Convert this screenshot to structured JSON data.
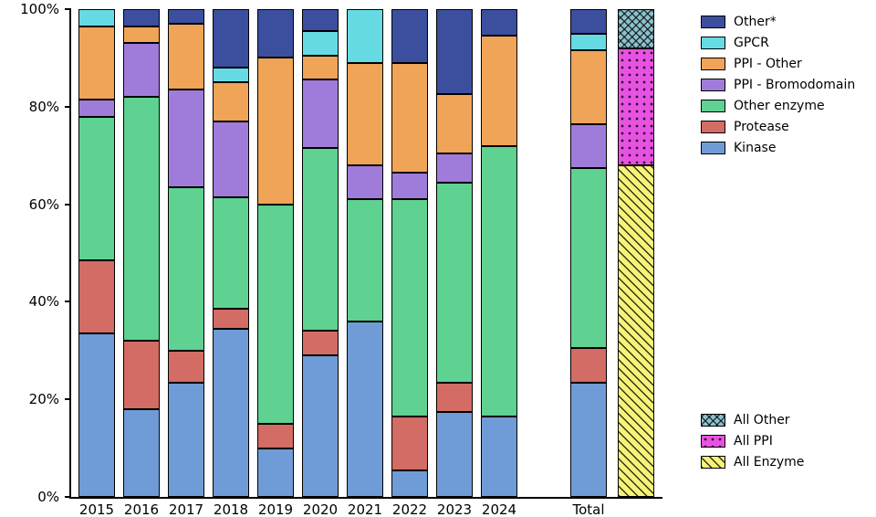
{
  "chart_data": {
    "type": "bar",
    "stacked": true,
    "unit": "%",
    "title": "",
    "xlabel": "",
    "ylabel": "",
    "ylim": [
      0,
      100
    ],
    "y_ticks": [
      "0%",
      "20%",
      "40%",
      "60%",
      "80%",
      "100%"
    ],
    "categories": [
      "2015",
      "2016",
      "2017",
      "2018",
      "2019",
      "2020",
      "2021",
      "2022",
      "2023",
      "2024",
      "Total"
    ],
    "series": [
      {
        "name": "Kinase",
        "color": "#6f9cd6",
        "values": [
          33.5,
          18,
          23.5,
          34.5,
          10,
          29,
          36,
          5.5,
          17.5,
          16.5,
          23.5
        ]
      },
      {
        "name": "Protease",
        "color": "#d26c64",
        "values": [
          15,
          14,
          6.5,
          4,
          5,
          5,
          0,
          11,
          6,
          0,
          7
        ]
      },
      {
        "name": "Other enzyme",
        "color": "#5fd191",
        "values": [
          29.5,
          50,
          33.5,
          23,
          45,
          37.5,
          25,
          44.5,
          41,
          55.5,
          37
        ]
      },
      {
        "name": "PPI - Bromodomain",
        "color": "#a07cda",
        "values": [
          3.5,
          11,
          20,
          15.5,
          0,
          14,
          7,
          5.5,
          6,
          0,
          9
        ]
      },
      {
        "name": "PPI - Other",
        "color": "#f0a458",
        "values": [
          15,
          3.5,
          13.5,
          8,
          30,
          5,
          21,
          22.5,
          12,
          22.5,
          15
        ]
      },
      {
        "name": "GPCR",
        "color": "#66dbe3",
        "values": [
          3.5,
          0,
          0,
          3,
          0,
          5,
          11,
          0,
          0,
          0,
          3.5
        ]
      },
      {
        "name": "Other*",
        "color": "#3c4e9e",
        "values": [
          0,
          3.5,
          3,
          12,
          10,
          4.5,
          0,
          11,
          17.5,
          5.5,
          5
        ]
      }
    ],
    "summary_bar": {
      "segments": [
        {
          "name": "All Enzyme",
          "value": 68,
          "color": "#f7f378",
          "pattern": "diagonal"
        },
        {
          "name": "All PPI",
          "value": 24,
          "color": "#e852e2",
          "pattern": "dots"
        },
        {
          "name": "All Other",
          "value": 8,
          "color": "#8cc1cd",
          "pattern": "crosshatch"
        }
      ]
    },
    "legend_top": [
      {
        "label": "Other*",
        "color": "#3c4e9e"
      },
      {
        "label": "GPCR",
        "color": "#66dbe3"
      },
      {
        "label": "PPI - Other",
        "color": "#f0a458"
      },
      {
        "label": "PPI - Bromodomain",
        "color": "#a07cda"
      },
      {
        "label": "Other enzyme",
        "color": "#5fd191"
      },
      {
        "label": "Protease",
        "color": "#d26c64"
      },
      {
        "label": "Kinase",
        "color": "#6f9cd6"
      }
    ],
    "legend_bottom": [
      {
        "label": "All Other",
        "color": "#8cc1cd",
        "pattern": "crosshatch"
      },
      {
        "label": "All PPI",
        "color": "#e852e2",
        "pattern": "dots"
      },
      {
        "label": "All Enzyme",
        "color": "#f7f378",
        "pattern": "diagonal"
      }
    ]
  }
}
